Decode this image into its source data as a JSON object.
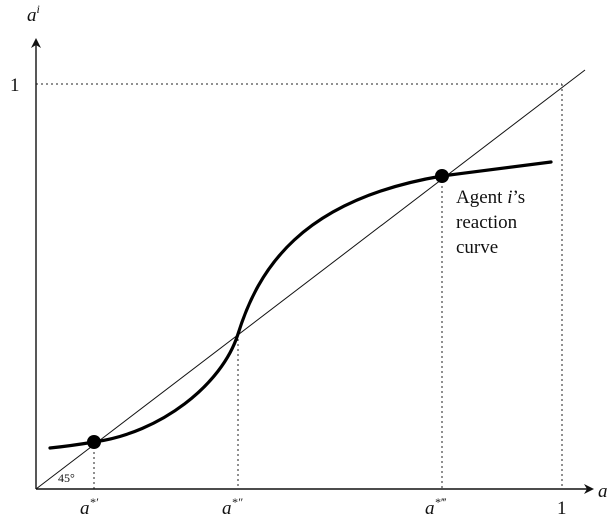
{
  "axes": {
    "y_label_base": "a",
    "y_label_sup": "i",
    "x_label": "a"
  },
  "ticks": {
    "y_one": "1",
    "x_one": "1"
  },
  "x_points": {
    "low": {
      "base": "a",
      "sup": "*′"
    },
    "mid": {
      "base": "a",
      "sup": "*″"
    },
    "high": {
      "base": "a",
      "sup": "*‴"
    }
  },
  "angle_label": "45°",
  "curve_label": {
    "line1_prefix": "Agent ",
    "line1_italic": "i",
    "line1_suffix": "’s",
    "line2": "reaction",
    "line3": "curve"
  }
}
